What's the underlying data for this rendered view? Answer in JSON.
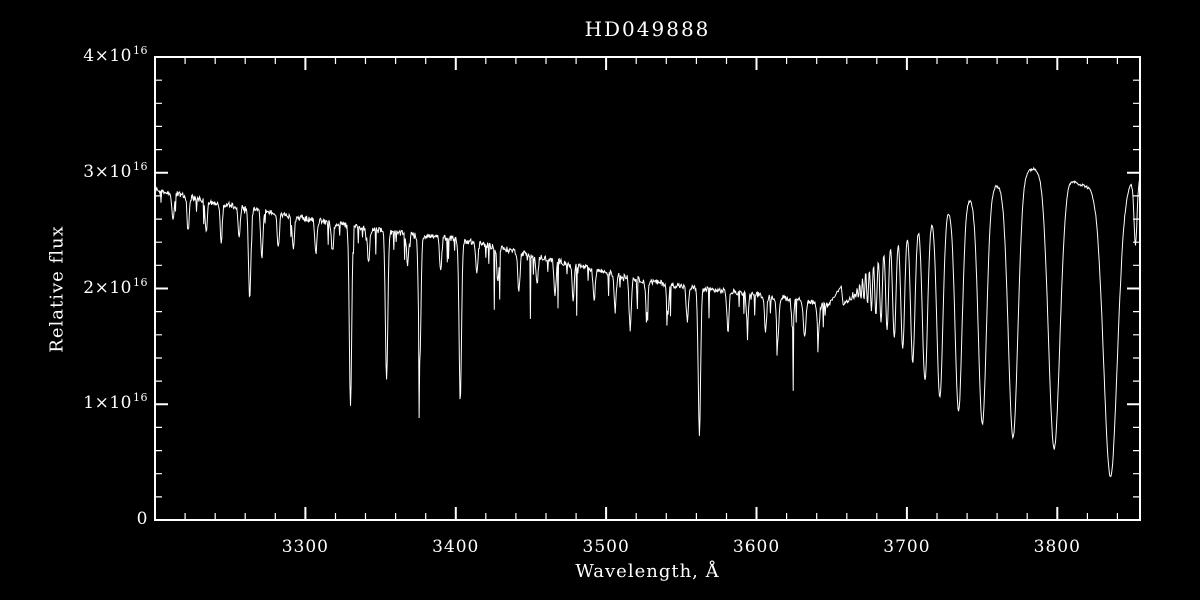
{
  "chart_data": {
    "type": "line",
    "title": "HD049888",
    "xlabel": "Wavelength, Å",
    "ylabel": "Relative flux",
    "line_color": "#ffffff",
    "background_color": "#000000",
    "axis_color": "#ffffff",
    "xlim": [
      3200,
      3855
    ],
    "ylim_1e16": [
      0,
      4
    ],
    "y_unit_exponent": 16,
    "xticks": [
      3300,
      3400,
      3500,
      3600,
      3700,
      3800
    ],
    "x_minor_step": 20,
    "yticks": [
      {
        "value": 0,
        "mantissa": "0",
        "exp": ""
      },
      {
        "value": 1,
        "mantissa": "1×10",
        "exp": "16"
      },
      {
        "value": 2,
        "mantissa": "2×10",
        "exp": "16"
      },
      {
        "value": 3,
        "mantissa": "3×10",
        "exp": "16"
      },
      {
        "value": 4,
        "mantissa": "4×10",
        "exp": "16"
      }
    ],
    "y_minor_step": 0.2,
    "sample_step": 0.4,
    "continuum_columns": [
      "wavelength_angstrom",
      "flux_1e16"
    ],
    "continuum": [
      [
        3200,
        2.86
      ],
      [
        3240,
        2.74
      ],
      [
        3280,
        2.65
      ],
      [
        3320,
        2.56
      ],
      [
        3360,
        2.48
      ],
      [
        3400,
        2.43
      ],
      [
        3440,
        2.32
      ],
      [
        3480,
        2.2
      ],
      [
        3520,
        2.08
      ],
      [
        3560,
        2.0
      ],
      [
        3600,
        1.95
      ],
      [
        3630,
        1.9
      ],
      [
        3648,
        1.85
      ],
      [
        3660,
        2.1
      ],
      [
        3672,
        2.35
      ],
      [
        3684,
        2.45
      ],
      [
        3700,
        2.55
      ],
      [
        3716,
        2.62
      ],
      [
        3732,
        2.72
      ],
      [
        3748,
        2.82
      ],
      [
        3764,
        2.92
      ],
      [
        3778,
        3.02
      ],
      [
        3790,
        3.05
      ],
      [
        3802,
        3.0
      ],
      [
        3815,
        2.9
      ],
      [
        3828,
        2.85
      ],
      [
        3840,
        2.88
      ],
      [
        3855,
        2.95
      ]
    ],
    "absorption_line_columns": [
      "center_angstrom",
      "depth_1e16",
      "sigma_angstrom"
    ],
    "absorption_lines": [
      [
        3835.4,
        2.5,
        4.5
      ],
      [
        3797.9,
        2.4,
        3.8
      ],
      [
        3770.6,
        2.25,
        3.2
      ],
      [
        3750.2,
        2.0,
        2.7
      ],
      [
        3734.4,
        1.8,
        2.3
      ],
      [
        3721.9,
        1.6,
        2.0
      ],
      [
        3712.0,
        1.4,
        1.7
      ],
      [
        3703.9,
        1.2,
        1.5
      ],
      [
        3697.2,
        1.05,
        1.3
      ],
      [
        3691.6,
        0.92,
        1.15
      ],
      [
        3686.8,
        0.82,
        1.0
      ],
      [
        3682.8,
        0.72,
        0.9
      ],
      [
        3679.4,
        0.64,
        0.82
      ],
      [
        3676.4,
        0.57,
        0.75
      ],
      [
        3673.8,
        0.5,
        0.7
      ],
      [
        3671.5,
        0.44,
        0.65
      ],
      [
        3669.5,
        0.39,
        0.6
      ],
      [
        3667.7,
        0.34,
        0.58
      ],
      [
        3666.1,
        0.3,
        0.55
      ],
      [
        3664.7,
        0.27,
        0.52
      ],
      [
        3663.4,
        0.24,
        0.5
      ],
      [
        3662.3,
        0.21,
        0.5
      ],
      [
        3661.2,
        0.19,
        0.48
      ],
      [
        3660.3,
        0.17,
        0.46
      ],
      [
        3659.4,
        0.15,
        0.45
      ],
      [
        3658.6,
        0.13,
        0.44
      ],
      [
        3657.9,
        0.12,
        0.43
      ],
      [
        3657.3,
        0.11,
        0.42
      ],
      [
        3263,
        0.78,
        0.8
      ],
      [
        3330,
        1.55,
        0.8
      ],
      [
        3354,
        1.28,
        0.8
      ],
      [
        3376,
        1.12,
        0.8
      ],
      [
        3403,
        1.4,
        0.8
      ],
      [
        3562,
        1.25,
        0.8
      ],
      [
        3212,
        0.25,
        0.7
      ],
      [
        3222,
        0.3,
        0.7
      ],
      [
        3234,
        0.28,
        0.7
      ],
      [
        3244,
        0.32,
        0.7
      ],
      [
        3256,
        0.25,
        0.7
      ],
      [
        3271,
        0.42,
        0.7
      ],
      [
        3282,
        0.3,
        0.7
      ],
      [
        3292,
        0.26,
        0.7
      ],
      [
        3307,
        0.3,
        0.7
      ],
      [
        3318,
        0.24,
        0.7
      ],
      [
        3342,
        0.3,
        0.7
      ],
      [
        3368,
        0.26,
        0.7
      ],
      [
        3390,
        0.3,
        0.7
      ],
      [
        3414,
        0.26,
        0.7
      ],
      [
        3428,
        0.3,
        0.7
      ],
      [
        3442,
        0.34,
        0.7
      ],
      [
        3454,
        0.25,
        0.7
      ],
      [
        3466,
        0.3,
        0.7
      ],
      [
        3478,
        0.3,
        0.7
      ],
      [
        3492,
        0.26,
        0.7
      ],
      [
        3506,
        0.3,
        0.7
      ],
      [
        3516,
        0.44,
        0.7
      ],
      [
        3527,
        0.3,
        0.7
      ],
      [
        3541,
        0.26,
        0.7
      ],
      [
        3554,
        0.3,
        0.7
      ],
      [
        3581,
        0.34,
        0.7
      ],
      [
        3594,
        0.26,
        0.7
      ],
      [
        3606,
        0.3,
        0.7
      ],
      [
        3614,
        0.38,
        0.8
      ],
      [
        3624,
        0.26,
        0.7
      ],
      [
        3632,
        0.3,
        0.8
      ],
      [
        3641,
        0.26,
        0.8
      ],
      [
        3852,
        0.55,
        1.0
      ]
    ],
    "noise": {
      "base_left": 0.025,
      "base_right": 0.012,
      "spike_max_wavelength": 3650,
      "big_spike_prob": 0.015,
      "big_spike_depth": 0.5,
      "small_spike_prob": 0.055,
      "small_spike_depth": 0.2,
      "floor": 0.3
    }
  }
}
